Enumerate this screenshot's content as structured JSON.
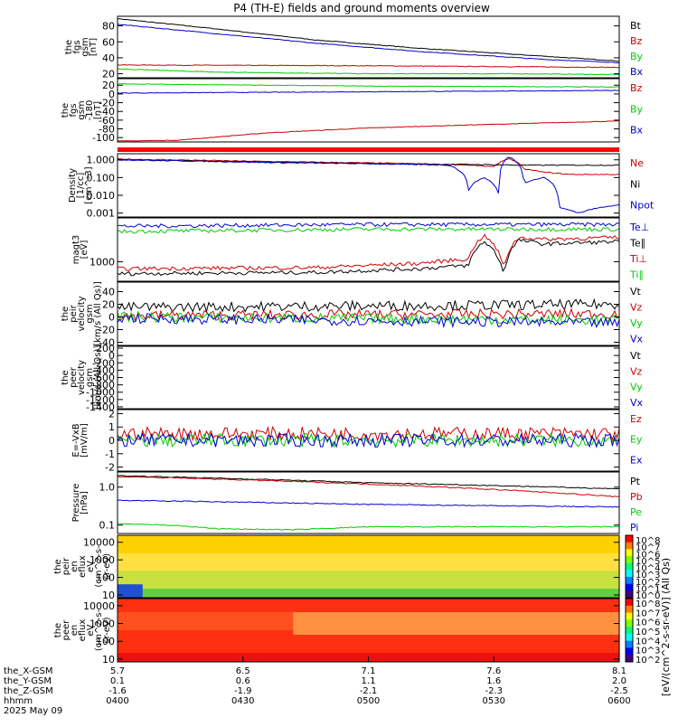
{
  "title": "P4 (TH-E) fields and ground moments overview",
  "colorbar_label": "[eV/(cm^2-s-sr-eV)] (All Qs)",
  "footer": {
    "row_labels": [
      "the_X-GSM",
      "the_Y-GSM",
      "the_Z-GSM",
      "hhmm",
      "2025 May 09"
    ],
    "columns": [
      {
        "x": "5.7",
        "y": "0.1",
        "z": "-1.6",
        "t": "0400"
      },
      {
        "x": "6.5",
        "y": "0.6",
        "z": "-1.9",
        "t": "0430"
      },
      {
        "x": "7.1",
        "y": "1.1",
        "z": "-2.1",
        "t": "0500"
      },
      {
        "x": "7.6",
        "y": "1.6",
        "z": "-2.3",
        "t": "0530"
      },
      {
        "x": "8.1",
        "y": "2.0",
        "z": "-2.5",
        "t": "0600"
      }
    ]
  },
  "chart_data": [
    {
      "id": "fgs1",
      "type": "line",
      "ylabel": "the\nfgs\ngsm\n[nT]",
      "ylim": [
        15,
        92
      ],
      "tick_labels": [
        "80",
        "60",
        "40",
        "20"
      ],
      "tick_values": [
        80,
        60,
        40,
        20
      ],
      "series": [
        {
          "name": "Bt",
          "color": "#000000",
          "x": [
            0,
            0.2,
            0.4,
            0.6,
            0.75,
            0.85,
            1
          ],
          "values": [
            89,
            76,
            62,
            52,
            46,
            42,
            36
          ]
        },
        {
          "name": "Bz",
          "color": "#cc0000",
          "x": [
            0,
            0.5,
            1
          ],
          "values": [
            31,
            30,
            28
          ]
        },
        {
          "name": "By",
          "color": "#00cc00",
          "x": [
            0,
            0.2,
            0.5,
            0.8,
            1
          ],
          "values": [
            26,
            22,
            20,
            20,
            19
          ]
        },
        {
          "name": "Bx",
          "color": "#0000cc",
          "x": [
            0,
            0.2,
            0.4,
            0.6,
            0.75,
            0.85,
            1
          ],
          "values": [
            82,
            70,
            58,
            48,
            42,
            38,
            34
          ]
        }
      ]
    },
    {
      "id": "fgs2",
      "type": "line",
      "ylabel": "the\nfgs\ngsm\n-180\n[nT]",
      "ylim": [
        -110,
        35
      ],
      "tick_labels": [
        "20",
        "0",
        "-20",
        "-40",
        "-60",
        "-80",
        "-100"
      ],
      "tick_values": [
        20,
        0,
        -20,
        -40,
        -60,
        -80,
        -100
      ],
      "series": [
        {
          "name": "Bz",
          "color": "#cc0000",
          "x": [
            0,
            0.12,
            0.3,
            0.5,
            0.7,
            1
          ],
          "values": [
            -108,
            -106,
            -89,
            -78,
            -71,
            -62
          ]
        },
        {
          "name": "By",
          "color": "#00cc00",
          "x": [
            0,
            0.5,
            1
          ],
          "values": [
            23,
            18,
            16
          ]
        },
        {
          "name": "Bx",
          "color": "#0000cc",
          "x": [
            0,
            0.5,
            1
          ],
          "values": [
            2,
            5,
            8
          ]
        }
      ]
    },
    {
      "id": "dens",
      "type": "line",
      "log": true,
      "ylabel": "Density\n[1/cc]\n[cm^-3]",
      "ylim": [
        0.0006,
        2.2
      ],
      "tick_labels": [
        "1.000",
        "0.100",
        "0.010",
        "0.001"
      ],
      "tick_values": [
        1,
        0.1,
        0.01,
        0.001
      ],
      "series": [
        {
          "name": "Ne",
          "color": "#cc0000",
          "x": [
            0,
            0.3,
            0.6,
            0.7,
            0.75,
            0.78,
            0.81,
            0.85,
            0.9,
            1
          ],
          "values": [
            1.1,
            0.8,
            0.6,
            0.5,
            0.4,
            1.2,
            0.3,
            0.2,
            0.15,
            0.15
          ]
        },
        {
          "name": "Ni",
          "color": "#000000",
          "x": [
            0,
            0.3,
            0.6,
            0.7,
            0.8,
            0.9,
            1
          ],
          "values": [
            1.0,
            0.75,
            0.55,
            0.55,
            0.5,
            0.5,
            0.5
          ]
        },
        {
          "name": "Npot",
          "color": "#0000cc",
          "x": [
            0,
            0.3,
            0.6,
            0.66,
            0.7,
            0.73,
            0.76,
            0.78,
            0.81,
            0.85,
            0.88,
            0.92,
            1
          ],
          "values": [
            1.0,
            0.7,
            0.55,
            0.5,
            0.02,
            0.1,
            0.01,
            1.5,
            0.05,
            0.1,
            0.002,
            0.001,
            0.003
          ]
        }
      ]
    },
    {
      "id": "temp",
      "type": "line",
      "log": true,
      "ylabel": "magt3\n[eV]",
      "ylim": [
        300,
        15000
      ],
      "tick_labels": [
        "1000"
      ],
      "tick_values": [
        1000
      ],
      "series": [
        {
          "name": "Te⊥",
          "color": "#0000cc",
          "x": [
            0,
            0.5,
            1
          ],
          "values": [
            9000,
            10000,
            10000
          ]
        },
        {
          "name": "Te∥",
          "color": "#000000",
          "x": [
            0,
            0.4,
            0.6,
            0.7,
            0.73,
            0.77,
            0.8,
            0.85,
            1
          ],
          "values": [
            480,
            520,
            650,
            800,
            3500,
            420,
            3800,
            3000,
            3500
          ]
        },
        {
          "name": "Ti⊥",
          "color": "#cc0000",
          "x": [
            0,
            0.4,
            0.6,
            0.7,
            0.73,
            0.77,
            0.8,
            0.85,
            1
          ],
          "values": [
            650,
            700,
            900,
            1200,
            5000,
            600,
            4500,
            4000,
            4500
          ]
        },
        {
          "name": "Ti∥",
          "color": "#00cc00",
          "x": [
            0,
            0.5,
            1
          ],
          "values": [
            6500,
            7500,
            7500
          ]
        }
      ]
    },
    {
      "id": "peir",
      "type": "line",
      "ylabel": "the\npeir\nvelocity\ngsm\n[km/s (All Qs)]",
      "ylim": [
        -45,
        55
      ],
      "tick_labels": [
        "40",
        "20",
        "0",
        "-20",
        "-40"
      ],
      "tick_values": [
        40,
        20,
        0,
        -20,
        -40
      ],
      "series": [
        {
          "name": "Vt",
          "color": "#000000",
          "x": [
            0,
            1
          ],
          "values": [
            15,
            20
          ]
        },
        {
          "name": "Vz",
          "color": "#cc0000",
          "x": [
            0,
            1
          ],
          "values": [
            2,
            5
          ]
        },
        {
          "name": "Vy",
          "color": "#00cc00",
          "x": [
            0,
            1
          ],
          "values": [
            0,
            -5
          ]
        },
        {
          "name": "Vx",
          "color": "#0000cc",
          "x": [
            0,
            1
          ],
          "values": [
            -2,
            -10
          ]
        }
      ]
    },
    {
      "id": "peer",
      "type": "line",
      "ylabel": "the\npeer\nvelocity\ngsm\n[km/s (All Qs)]",
      "ylim": [
        -1450,
        250
      ],
      "tick_labels": [
        "200",
        "0",
        "-200",
        "-400",
        "-600",
        "-800",
        "-1000",
        "-1200",
        "-1400"
      ],
      "tick_values": [
        200,
        0,
        -200,
        -400,
        -600,
        -800,
        -1000,
        -1200,
        -1400
      ],
      "series": [
        {
          "name": "Vt",
          "color": "#000000",
          "x": [],
          "values": []
        },
        {
          "name": "Vz",
          "color": "#cc0000",
          "x": [],
          "values": []
        },
        {
          "name": "Vy",
          "color": "#00cc00",
          "x": [],
          "values": []
        },
        {
          "name": "Vx",
          "color": "#0000cc",
          "x": [],
          "values": []
        }
      ]
    },
    {
      "id": "efield",
      "type": "line",
      "ylabel": "E=-VxB\n[mV/m]",
      "ylim": [
        -2.3,
        2.3
      ],
      "tick_labels": [
        "2",
        "1",
        "0",
        "-1",
        "-2"
      ],
      "tick_values": [
        2,
        1,
        0,
        -1,
        -2
      ],
      "series": [
        {
          "name": "Ez",
          "color": "#cc0000",
          "x": [
            0,
            1
          ],
          "values": [
            0.5,
            0.5
          ]
        },
        {
          "name": "Ey",
          "color": "#00cc00",
          "x": [
            0,
            1
          ],
          "values": [
            0,
            0
          ]
        },
        {
          "name": "Ex",
          "color": "#0000cc",
          "x": [
            0,
            1
          ],
          "values": [
            0,
            0
          ]
        }
      ]
    },
    {
      "id": "press",
      "type": "line",
      "log": true,
      "ylabel": "Pressure\n[nPa]",
      "ylim": [
        0.06,
        2.5
      ],
      "tick_labels": [
        "1.0",
        "0.1"
      ],
      "tick_values": [
        1,
        0.1
      ],
      "series": [
        {
          "name": "Pt",
          "color": "#000000",
          "x": [
            0,
            0.5,
            1
          ],
          "values": [
            2.0,
            1.3,
            0.9
          ]
        },
        {
          "name": "Pb",
          "color": "#cc0000",
          "x": [
            0,
            0.5,
            0.8,
            1
          ],
          "values": [
            1.9,
            1.2,
            0.8,
            0.55
          ]
        },
        {
          "name": "Pe",
          "color": "#00cc00",
          "x": [
            0,
            0.1,
            0.2,
            0.35,
            0.5,
            1
          ],
          "values": [
            0.11,
            0.1,
            0.08,
            0.075,
            0.09,
            0.09
          ]
        },
        {
          "name": "Pi",
          "color": "#0000cc",
          "x": [
            0,
            0.5,
            1
          ],
          "values": [
            0.45,
            0.35,
            0.3
          ]
        }
      ]
    },
    {
      "id": "peirspec",
      "type": "heatmap",
      "ylabel": "the\npeir\nen\neflux\neV\n(cm^2-s-\nsr-eV)",
      "tick_labels": [
        "10000",
        "1000",
        "100",
        "10"
      ],
      "tick_values": [
        10000,
        1000,
        100,
        10
      ],
      "ylim": [
        7,
        25000
      ]
    },
    {
      "id": "peerspec",
      "type": "heatmap",
      "ylabel": "the\npeer\nen\neflux\neV\n(cm^2-s-\nsr-eV)",
      "tick_labels": [
        "10000",
        "1000",
        "100",
        "10"
      ],
      "tick_values": [
        10000,
        1000,
        100,
        10
      ],
      "ylim": [
        7,
        25000
      ]
    }
  ],
  "colorbar_ticks": {
    "top": [
      "10^8",
      "10^7",
      "10^6",
      "10^5",
      "10^4",
      "10^3",
      "10^2",
      "10^1",
      "10^0"
    ],
    "bottom": [
      "10^8",
      "10^7",
      "10^6",
      "10^5",
      "10^4",
      "10^3",
      "10^2"
    ]
  }
}
